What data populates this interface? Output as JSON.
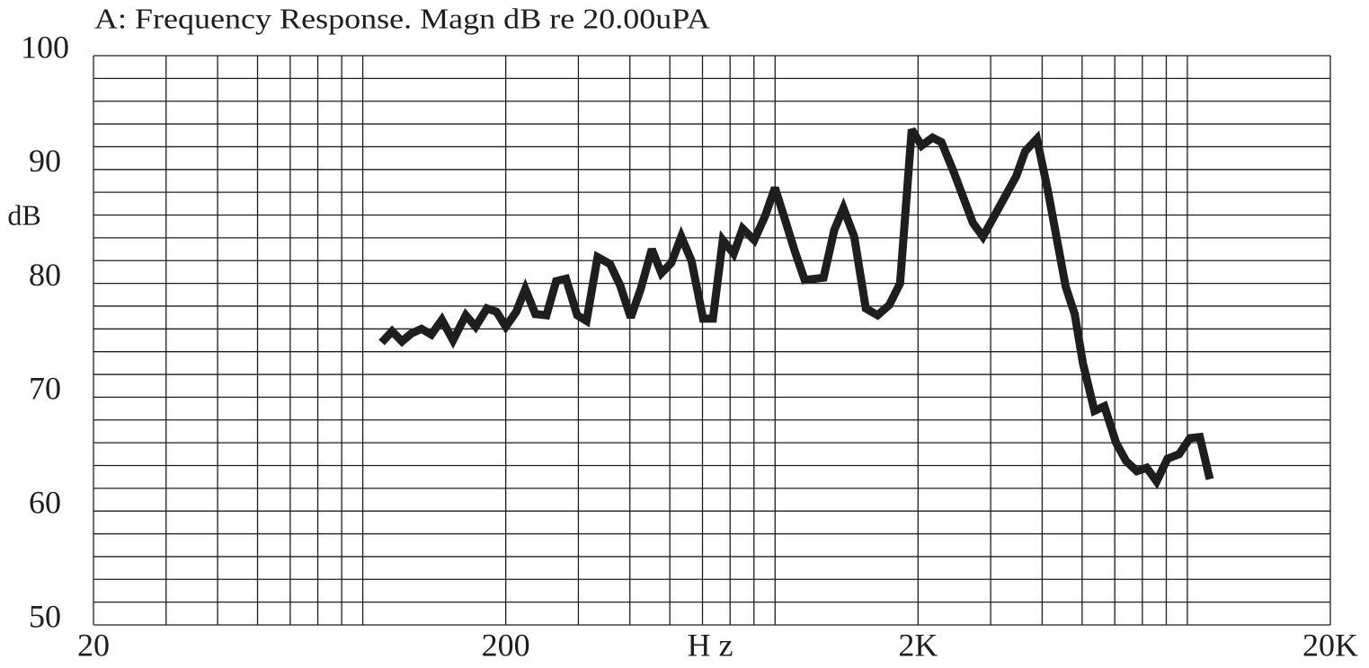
{
  "chart_data": {
    "type": "line",
    "title": "A: Frequency Response. Magn dB re 20.00uPA",
    "xlabel": "H z",
    "ylabel": "dB",
    "xscale": "log",
    "grid": true,
    "xlim": [
      20,
      20000
    ],
    "ylim": [
      50,
      100
    ],
    "xticks": [
      20,
      200,
      {
        "value": 2000,
        "label": "2K"
      },
      {
        "value": 20000,
        "label": "20K"
      }
    ],
    "yticks": [
      50,
      60,
      70,
      80,
      90,
      100
    ],
    "minor_xticks": [
      30,
      40,
      50,
      60,
      70,
      80,
      90,
      300,
      400,
      500,
      600,
      700,
      800,
      900,
      3000,
      4000,
      5000,
      6000,
      7000,
      8000,
      9000
    ],
    "minor_yticks": [
      52,
      54,
      56,
      58,
      62,
      64,
      66,
      68,
      72,
      74,
      76,
      78,
      82,
      84,
      86,
      88,
      92,
      94,
      96,
      98
    ],
    "x": [
      100,
      106,
      112,
      118,
      125,
      132,
      140,
      149,
      160,
      169,
      180,
      190,
      200,
      212,
      223,
      236,
      251,
      265,
      280,
      298,
      314,
      334,
      358,
      379,
      402,
      425,
      452,
      477,
      504,
      533,
      564,
      602,
      636,
      672,
      714,
      751,
      801,
      851,
      899,
      951,
      1005,
      1062,
      1180,
      1253,
      1318,
      1400,
      1494,
      1595,
      1703,
      1809,
      1931,
      2040,
      2168,
      2280,
      2446,
      2718,
      2873,
      3460,
      3638,
      3884,
      4126,
      4562,
      4798,
      5020,
      5358,
      5662,
      6044,
      6390,
      6788,
      7172,
      7580,
      8052,
      8596,
      9130,
      9650,
      10200
    ],
    "series": [
      {
        "color": "#1e1e1e",
        "values": [
          74.8,
          75.8,
          74.9,
          75.6,
          76.0,
          75.5,
          76.8,
          75.0,
          77.2,
          76.2,
          77.8,
          77.5,
          76.2,
          77.5,
          79.5,
          77.3,
          77.2,
          80.2,
          80.4,
          77.2,
          76.7,
          82.3,
          81.7,
          79.8,
          77.0,
          79.5,
          83.0,
          80.9,
          81.8,
          84.1,
          82.0,
          76.9,
          76.9,
          83.8,
          82.6,
          84.8,
          83.8,
          85.9,
          88.4,
          85.6,
          82.8,
          80.3,
          80.5,
          84.7,
          86.6,
          84.1,
          77.8,
          77.2,
          78.1,
          80.0,
          93.5,
          92.1,
          92.8,
          92.4,
          89.7,
          85.3,
          84.1,
          89.4,
          91.6,
          92.7,
          88.2,
          79.7,
          77.3,
          73.0,
          68.8,
          69.2,
          66.0,
          64.4,
          63.5,
          63.8,
          62.6,
          64.6,
          65.0,
          66.4,
          66.5,
          62.8
        ]
      }
    ]
  }
}
